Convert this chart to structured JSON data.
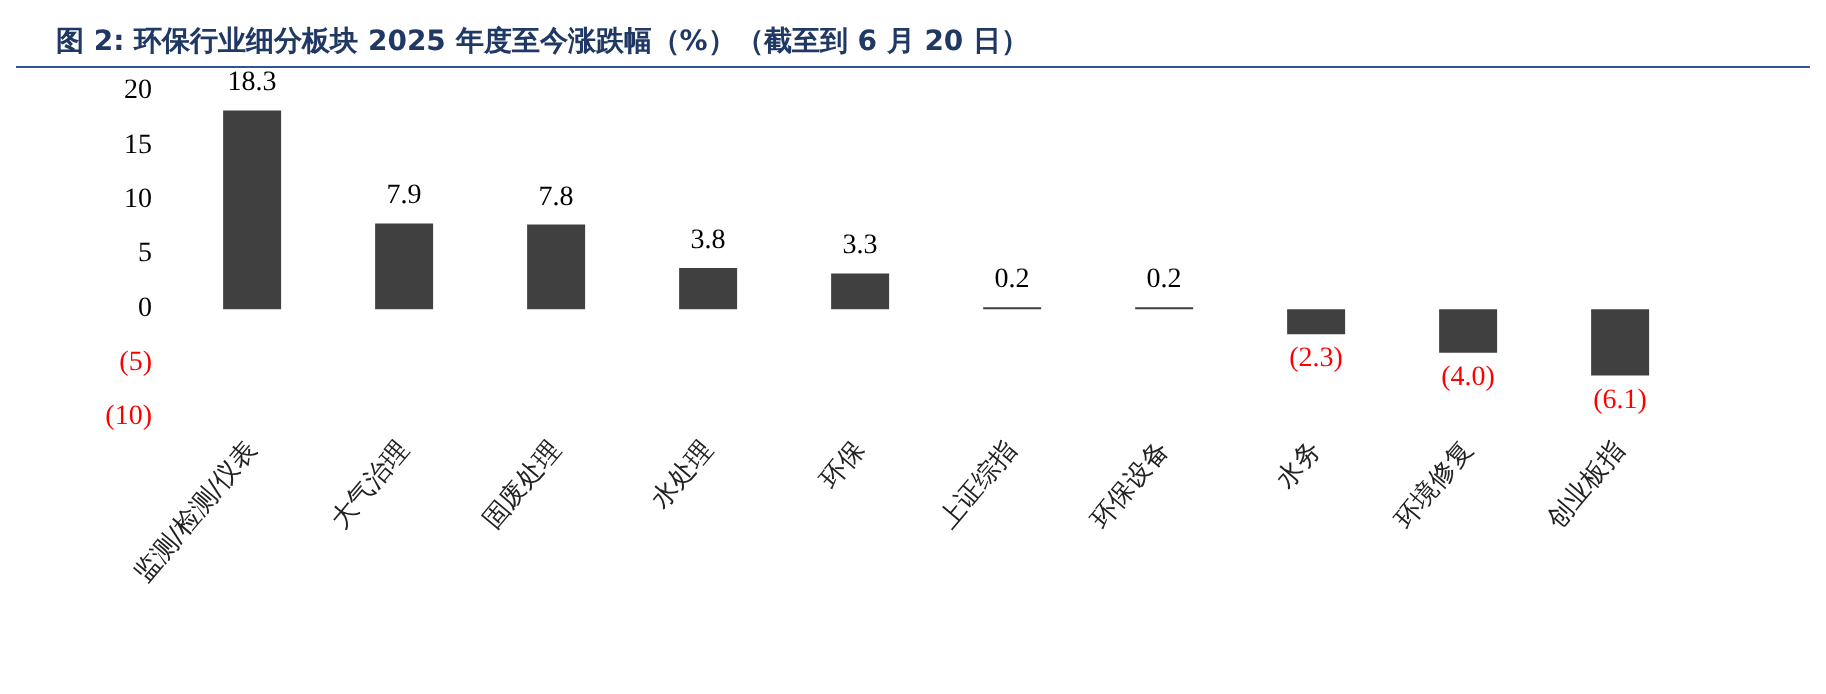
{
  "chart_data": {
    "type": "bar",
    "title": "图 2: 环保行业细分板块 2025 年度至今涨跌幅（%）（截至到 6 月 20 日）",
    "categories": [
      "监测/检测/仪表",
      "大气治理",
      "固废处理",
      "水处理",
      "环保",
      "上证综指",
      "环保设备",
      "水务",
      "环境修复",
      "创业板指"
    ],
    "values": [
      18.3,
      7.9,
      7.8,
      3.8,
      3.3,
      0.2,
      0.2,
      -2.3,
      -4.0,
      -6.1
    ],
    "value_labels": [
      "18.3",
      "7.9",
      "7.8",
      "3.8",
      "3.3",
      "0.2",
      "0.2",
      "(2.3)",
      "(4.0)",
      "(6.1)"
    ],
    "color": "#404040",
    "ylim": [
      -10,
      20
    ],
    "yticks": [
      {
        "value": -10,
        "label": "(10)"
      },
      {
        "value": -5,
        "label": "(5)"
      },
      0,
      5,
      10,
      15,
      20
    ],
    "grid": false
  }
}
